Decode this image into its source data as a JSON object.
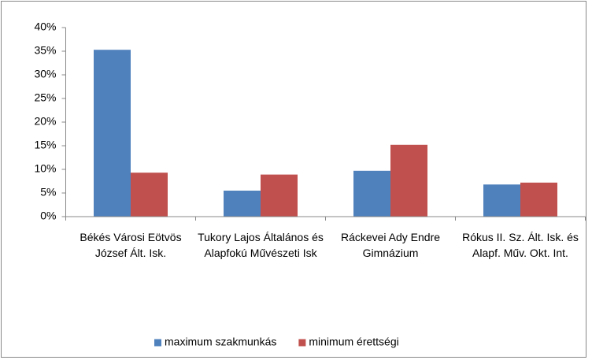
{
  "chart_data": {
    "type": "bar",
    "categories": [
      "Békés Városi Eötvös József Ált. Isk.",
      "Tukory Lajos Általános és Alapfokú Művészeti Isk",
      "Ráckevei Ady Endre Gimnázium",
      "Rókus II. Sz. Ált. Isk. és Alapf. Műv. Okt. Int."
    ],
    "series": [
      {
        "name": "maximum szakmunkás",
        "color": "#4f81bd",
        "values": [
          35.3,
          5.5,
          9.7,
          6.8
        ]
      },
      {
        "name": "minimum érettségi",
        "color": "#c0504d",
        "values": [
          9.3,
          8.9,
          15.2,
          7.2
        ]
      }
    ],
    "ylim": [
      0,
      40
    ],
    "yticks": [
      {
        "value": 0,
        "label": "0%"
      },
      {
        "value": 5,
        "label": "5%"
      },
      {
        "value": 10,
        "label": "10%"
      },
      {
        "value": 15,
        "label": "15%"
      },
      {
        "value": 20,
        "label": "20%"
      },
      {
        "value": 25,
        "label": "25%"
      },
      {
        "value": 30,
        "label": "30%"
      },
      {
        "value": 35,
        "label": "35%"
      },
      {
        "value": 40,
        "label": "40%"
      }
    ],
    "grid": false,
    "legend": "bottom"
  }
}
